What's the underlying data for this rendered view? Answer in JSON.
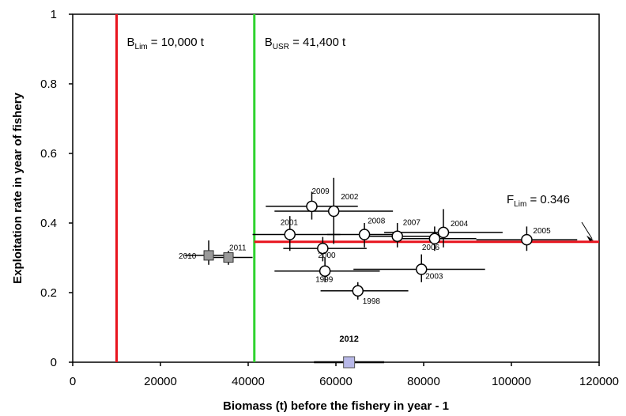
{
  "chart_data": {
    "type": "scatter",
    "title": "",
    "xlabel": "Biomass (t) before the fishery in year - 1",
    "ylabel": "Exploitation rate in year of fishery",
    "xlim": [
      0,
      120000
    ],
    "ylim": [
      0,
      1
    ],
    "x_ticks": [
      0,
      20000,
      40000,
      60000,
      80000,
      100000,
      120000
    ],
    "y_ticks": [
      0,
      0.2,
      0.4,
      0.6,
      0.8,
      1
    ],
    "x_tick_labels": [
      "0",
      "20000",
      "40000",
      "60000",
      "80000",
      "100000",
      "120000"
    ],
    "y_tick_labels": [
      "0",
      "0.2",
      "0.4",
      "0.6",
      "0.8",
      "1"
    ],
    "grid": false,
    "legend": "none",
    "reference_lines": {
      "blim": {
        "label_main": "B",
        "label_sub": "Lim",
        "label_value": " = 10,000 t",
        "x": 10000,
        "color": "#e8141e"
      },
      "busr": {
        "label_main": "B",
        "label_sub": "USR",
        "label_value": " = 41,400 t",
        "x": 41400,
        "color": "#2fd32f"
      },
      "flim": {
        "label_main": "F",
        "label_sub": "Lim",
        "label_value": " = 0.346",
        "y": 0.346,
        "x_start": 41400,
        "color": "#e8141e"
      }
    },
    "series": [
      {
        "marker": "circle-open",
        "points": [
          {
            "year": "1998",
            "x": 65000,
            "y": 0.205,
            "xerr": [
              56500,
              76500
            ],
            "yerr": [
              0.18,
              0.23
            ]
          },
          {
            "year": "1999",
            "x": 57500,
            "y": 0.262,
            "xerr": [
              46000,
              70000
            ],
            "yerr": [
              0.23,
              0.3
            ]
          },
          {
            "year": "2000",
            "x": 57000,
            "y": 0.327,
            "xerr": [
              48000,
              67000
            ],
            "yerr": [
              0.29,
              0.36
            ]
          },
          {
            "year": "2001",
            "x": 49500,
            "y": 0.367,
            "xerr": [
              41000,
              61000
            ],
            "yerr": [
              0.32,
              0.42
            ]
          },
          {
            "year": "2002",
            "x": 59500,
            "y": 0.434,
            "xerr": [
              46000,
              73000
            ],
            "yerr": [
              0.34,
              0.53
            ]
          },
          {
            "year": "2003",
            "x": 79500,
            "y": 0.267,
            "xerr": [
              64000,
              94000
            ],
            "yerr": [
              0.23,
              0.31
            ]
          },
          {
            "year": "2004",
            "x": 84500,
            "y": 0.373,
            "xerr": [
              71000,
              98000
            ],
            "yerr": [
              0.33,
              0.44
            ]
          },
          {
            "year": "2005",
            "x": 103500,
            "y": 0.352,
            "xerr": [
              92000,
              115000
            ],
            "yerr": [
              0.32,
              0.39
            ]
          },
          {
            "year": "2006",
            "x": 82500,
            "y": 0.355,
            "xerr": [
              73000,
              92000
            ],
            "yerr": [
              0.32,
              0.39
            ]
          },
          {
            "year": "2007",
            "x": 74000,
            "y": 0.362,
            "xerr": [
              66000,
              82000
            ],
            "yerr": [
              0.33,
              0.4
            ]
          },
          {
            "year": "2008",
            "x": 66500,
            "y": 0.367,
            "xerr": [
              58000,
              75000
            ],
            "yerr": [
              0.33,
              0.4
            ]
          },
          {
            "year": "2009",
            "x": 54500,
            "y": 0.448,
            "xerr": [
              44000,
              65000
            ],
            "yerr": [
              0.41,
              0.49
            ]
          },
          {
            "year": "2010",
            "x": 31000,
            "y": 0.307,
            "xerr": [
              25500,
              36500
            ],
            "yerr": [
              0.28,
              0.35
            ]
          },
          {
            "year": "2011",
            "x": 35500,
            "y": 0.301,
            "xerr": [
              30000,
              41000
            ],
            "yerr": [
              0.28,
              0.32
            ]
          }
        ]
      },
      {
        "marker": "square-projection",
        "points": [
          {
            "year": "2012",
            "x": 63000,
            "y": 0.0,
            "xerr": [
              55000,
              71000
            ]
          }
        ]
      }
    ]
  }
}
